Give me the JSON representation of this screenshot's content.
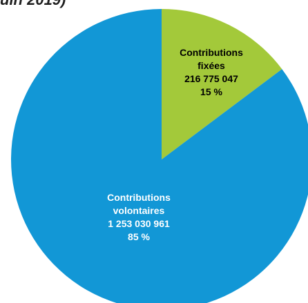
{
  "chart_data": {
    "type": "pie",
    "title": "uin 2019)",
    "slices": [
      {
        "label_lines": [
          "Contributions",
          "fixées"
        ],
        "value": 216775047,
        "value_text": "216 775 047",
        "percent_text": "15 %",
        "color": "#a3c93a",
        "text_color": "#000000"
      },
      {
        "label_lines": [
          "Contributions",
          "volontaires"
        ],
        "value": 1253030961,
        "value_text": "1 253 030 961",
        "percent_text": "85 %",
        "color": "#1297d6",
        "text_color": "#ffffff"
      }
    ]
  }
}
